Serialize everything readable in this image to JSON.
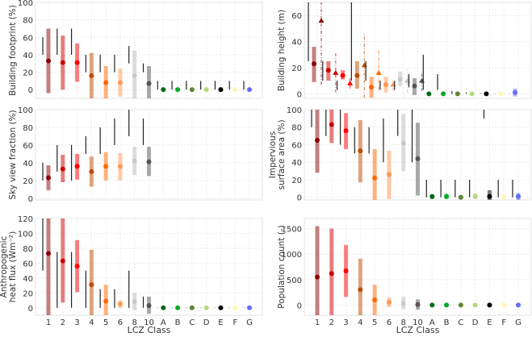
{
  "chart_data": {
    "type": "errorbar-panels",
    "xlabel": "LCZ Class",
    "categories": [
      "1",
      "2",
      "3",
      "4",
      "5",
      "6",
      "8",
      "10",
      "A",
      "B",
      "C",
      "D",
      "E",
      "F",
      "G"
    ],
    "colors": [
      "#8b0101",
      "#cc0200",
      "#fc0001",
      "#be4c03",
      "#ff6602",
      "#ff9856",
      "#bcbcba",
      "#555555",
      "#006a18",
      "#00a926",
      "#628432",
      "#b5da7f",
      "#000000",
      "#fcf7b1",
      "#656bfa"
    ],
    "panels": [
      {
        "id": "building-footprint",
        "ylabel": [
          "Building footprint (%)"
        ],
        "ylim": [
          -10,
          100
        ],
        "yticks": [
          0,
          20,
          40,
          60,
          80,
          100
        ],
        "reference_ranges": [
          [
            40,
            60
          ],
          [
            40,
            70
          ],
          [
            40,
            70
          ],
          [
            20,
            40
          ],
          [
            20,
            40
          ],
          [
            20,
            40
          ],
          [
            30,
            50
          ],
          [
            20,
            30
          ],
          [
            0,
            10
          ],
          [
            0,
            10
          ],
          [
            0,
            10
          ],
          [
            0,
            10
          ],
          [
            0,
            10
          ],
          [
            0,
            10
          ],
          [
            0,
            10
          ]
        ],
        "ranges": [
          [
            -4,
            70
          ],
          [
            0,
            62
          ],
          [
            9,
            53
          ],
          [
            -10,
            42
          ],
          [
            -10,
            27
          ],
          [
            -8,
            24
          ],
          [
            -10,
            45
          ],
          [
            -10,
            27
          ],
          [
            -1,
            1
          ],
          [
            -1,
            1
          ],
          [
            -1,
            1
          ],
          [
            -1,
            1
          ],
          [
            -1,
            1
          ],
          [
            -1,
            1
          ],
          [
            -1,
            1
          ]
        ],
        "values": [
          33,
          31,
          31,
          16,
          8,
          8,
          16,
          7,
          0,
          0,
          0,
          0,
          0,
          0,
          0
        ]
      },
      {
        "id": "building-height",
        "ylabel": [
          "Building height (m)"
        ],
        "ylim": [
          -3.5,
          70
        ],
        "yticks": [
          0,
          20,
          40,
          60
        ],
        "reference_ranges": [
          [
            25,
            70
          ],
          [
            10,
            25
          ],
          [
            3,
            10
          ],
          [
            10,
            70
          ],
          [
            10,
            25
          ],
          [
            3,
            10
          ],
          [
            3,
            10
          ],
          [
            5,
            15
          ],
          [
            3,
            30
          ],
          [
            3,
            15
          ],
          [
            0,
            2
          ],
          [
            0,
            1
          ],
          [
            0,
            0.5
          ],
          [
            0,
            0.2
          ],
          [
            0,
            0.2
          ]
        ],
        "ranges": [
          [
            9,
            36
          ],
          [
            10,
            25
          ],
          [
            11,
            18
          ],
          [
            4,
            25
          ],
          [
            -3,
            13
          ],
          [
            1,
            13
          ],
          [
            6,
            17
          ],
          [
            -1,
            12
          ],
          [
            -0.5,
            0.5
          ],
          [
            -0.5,
            0.5
          ],
          [
            -0.5,
            0.5
          ],
          [
            -0.5,
            0.5
          ],
          [
            -0.5,
            0.5
          ],
          [
            -0.5,
            0.5
          ],
          [
            -2,
            4
          ]
        ],
        "values": [
          23,
          18,
          14,
          14,
          5,
          7,
          11,
          6,
          0,
          0,
          0,
          0,
          0,
          0,
          1
        ],
        "secondary_values": [
          56,
          16,
          8,
          22,
          16,
          7,
          10,
          10,
          null,
          null,
          null,
          null,
          null,
          null,
          null
        ],
        "secondary_ranges": [
          [
            7,
            70
          ],
          [
            1,
            31
          ],
          [
            4,
            12
          ],
          [
            -3,
            47
          ],
          [
            3,
            33
          ],
          [
            2,
            10
          ],
          [
            1,
            19
          ],
          [
            2,
            17
          ],
          null,
          null,
          null,
          null,
          null,
          null,
          null
        ]
      },
      {
        "id": "sky-view-fraction",
        "ylabel": [
          "Sky view fraction (%)"
        ],
        "ylim": [
          -2,
          100
        ],
        "yticks": [
          0,
          20,
          40,
          60,
          80,
          100
        ],
        "reference_ranges": [
          [
            20,
            40
          ],
          [
            30,
            60
          ],
          [
            20,
            60
          ],
          [
            50,
            70
          ],
          [
            50,
            80
          ],
          [
            60,
            90
          ],
          [
            70,
            100
          ],
          [
            60,
            90
          ],
          null,
          null,
          null,
          null,
          null,
          null,
          null
        ],
        "ranges": [
          [
            9,
            37
          ],
          [
            18,
            49
          ],
          [
            21,
            50
          ],
          [
            13,
            47
          ],
          [
            20,
            52
          ],
          [
            20,
            51
          ],
          [
            26,
            58
          ],
          [
            25,
            58
          ],
          null,
          null,
          null,
          null,
          null,
          null,
          null
        ],
        "values": [
          23,
          33,
          36,
          30,
          36,
          36,
          42,
          41,
          null,
          null,
          null,
          null,
          null,
          null,
          null
        ]
      },
      {
        "id": "impervious-surface-area",
        "ylabel": [
          "Impervious",
          "surface area (%)"
        ],
        "ylim": [
          -3,
          100
        ],
        "yticks": [
          0,
          20,
          40,
          60,
          80,
          100
        ],
        "reference_ranges": [
          [
            80,
            100
          ],
          [
            70,
            100
          ],
          [
            60,
            100
          ],
          [
            50,
            80
          ],
          [
            50,
            80
          ],
          [
            40,
            90
          ],
          [
            70,
            100
          ],
          [
            40,
            100
          ],
          [
            0,
            20
          ],
          [
            0,
            20
          ],
          [
            0,
            20
          ],
          [
            0,
            20
          ],
          [
            90,
            100
          ],
          [
            0,
            20
          ],
          [
            0,
            20
          ]
        ],
        "ranges": [
          [
            28,
            100
          ],
          [
            62,
            100
          ],
          [
            55,
            96
          ],
          [
            17,
            88
          ],
          [
            -3,
            55
          ],
          [
            -2,
            53
          ],
          [
            30,
            95
          ],
          [
            2,
            85
          ],
          [
            -2,
            3
          ],
          [
            -2,
            4
          ],
          [
            -1,
            2
          ],
          [
            -2,
            5
          ],
          [
            -3,
            8
          ],
          [
            -2,
            3
          ],
          [
            -3,
            5
          ]
        ],
        "values": [
          65,
          83,
          76,
          53,
          22,
          26,
          62,
          44,
          1,
          1,
          0,
          1,
          1,
          0,
          1
        ]
      },
      {
        "id": "anthropogenic-heat-flux",
        "ylabel": [
          "Anthropogenic",
          "heat flux (Wm⁻²)"
        ],
        "ylim": [
          -10,
          120
        ],
        "yticks": [
          0,
          20,
          40,
          60,
          80,
          100,
          120
        ],
        "reference_ranges": [
          [
            50,
            120
          ],
          [
            0,
            75
          ],
          [
            0,
            75
          ],
          [
            0,
            50
          ],
          [
            0,
            25
          ],
          [
            0,
            25
          ],
          [
            0,
            50
          ],
          [
            0,
            15
          ],
          [
            0,
            0.4
          ],
          [
            0,
            0.4
          ],
          [
            0,
            0.4
          ],
          [
            0,
            0.4
          ],
          [
            0,
            0.4
          ],
          [
            0,
            0.4
          ],
          [
            0,
            0.4
          ]
        ],
        "ranges": [
          [
            -10,
            120
          ],
          [
            7,
            120
          ],
          [
            21,
            91
          ],
          [
            -10,
            78
          ],
          [
            -10,
            31
          ],
          [
            0,
            10
          ],
          [
            -3,
            20
          ],
          [
            -8,
            15
          ],
          [
            -0.5,
            0.5
          ],
          [
            -0.5,
            0.5
          ],
          [
            -0.5,
            0.5
          ],
          [
            -0.5,
            0.5
          ],
          [
            -0.5,
            0.5
          ],
          [
            -0.5,
            0.5
          ],
          [
            -0.5,
            0.5
          ]
        ],
        "values": [
          73,
          63,
          56,
          31,
          9,
          5,
          8,
          3,
          0,
          0,
          0,
          0,
          0,
          0,
          0
        ]
      },
      {
        "id": "population-count",
        "ylabel": [
          "Population count (-)"
        ],
        "ylim": [
          -200,
          1700
        ],
        "yticks": [
          0,
          500,
          1000,
          1500
        ],
        "reference_ranges": null,
        "ranges": [
          [
            -200,
            1550
          ],
          [
            -200,
            1500
          ],
          [
            160,
            1180
          ],
          [
            -200,
            910
          ],
          [
            -200,
            400
          ],
          [
            -40,
            150
          ],
          [
            -80,
            160
          ],
          [
            -90,
            110
          ],
          [
            -5,
            5
          ],
          [
            -5,
            5
          ],
          [
            -5,
            5
          ],
          [
            -5,
            5
          ],
          [
            -5,
            5
          ],
          [
            -5,
            5
          ],
          [
            -5,
            5
          ]
        ],
        "values": [
          550,
          620,
          670,
          300,
          100,
          55,
          30,
          10,
          0,
          0,
          0,
          0,
          0,
          0,
          0
        ]
      }
    ]
  }
}
